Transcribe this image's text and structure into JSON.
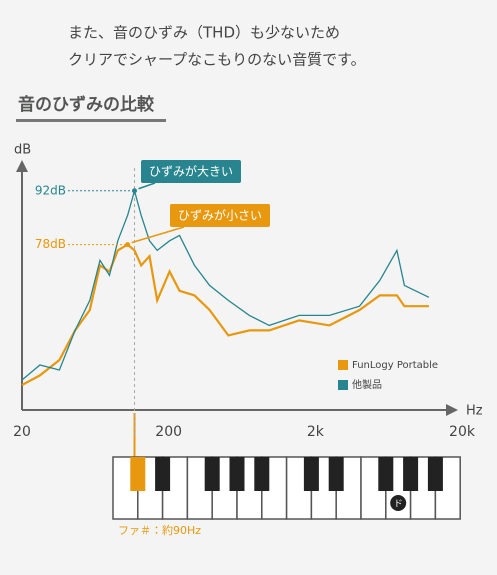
{
  "intro": [
    "また、音のひずみ（THD）も少ないため",
    "クリアでシャープなこもりのない音質です。"
  ],
  "chart_data": {
    "type": "line",
    "title": "音のひずみの比較",
    "y_label": "dB",
    "x_label": "Hz",
    "log_x": true,
    "xlim": [
      20,
      20000
    ],
    "xticks": [
      20,
      200,
      {
        "value": 2000,
        "label": "2k"
      },
      {
        "value": 20000,
        "label": "20k"
      }
    ],
    "ylim": [
      35,
      100
    ],
    "legend": "bottom-right",
    "x": [
      20,
      26.5,
      36,
      46,
      58,
      68,
      79,
      90,
      105,
      117,
      130,
      148,
      167,
      203,
      237,
      300,
      380,
      510,
      710,
      970,
      1550,
      2500,
      4000,
      5500,
      7200,
      8100,
      11900
    ],
    "series": [
      {
        "name": "FunLogy Portable",
        "color": "#e8980f",
        "values": [
          41.5,
          44,
          48,
          55.7,
          61,
          72.6,
          71,
          76.5,
          78,
          76.5,
          72.6,
          75,
          63.5,
          71,
          66,
          64.8,
          61,
          54.4,
          55.7,
          55.7,
          58.3,
          57,
          61,
          64.8,
          64.8,
          62,
          62
        ]
      },
      {
        "name": "他製品",
        "color": "#28858f",
        "values": [
          42.8,
          46.7,
          45.4,
          55.7,
          63.5,
          73.9,
          70,
          79,
          85.6,
          92,
          85.6,
          79,
          76.5,
          79,
          80.4,
          72.6,
          67.4,
          63.5,
          59.6,
          57,
          59.6,
          59.6,
          62,
          68.7,
          76.5,
          67.4,
          64.3
        ]
      }
    ],
    "markers": [
      {
        "x": 117,
        "y": 92,
        "label": "92dB",
        "note": "ひずみが大きい",
        "series": 1
      },
      {
        "x": 105,
        "y": 78,
        "label": "78dB",
        "note": "ひずみが小さい",
        "series": 0
      }
    ]
  },
  "piano": {
    "note_label": "ファ＃：約90Hz",
    "key_label": "ド"
  }
}
